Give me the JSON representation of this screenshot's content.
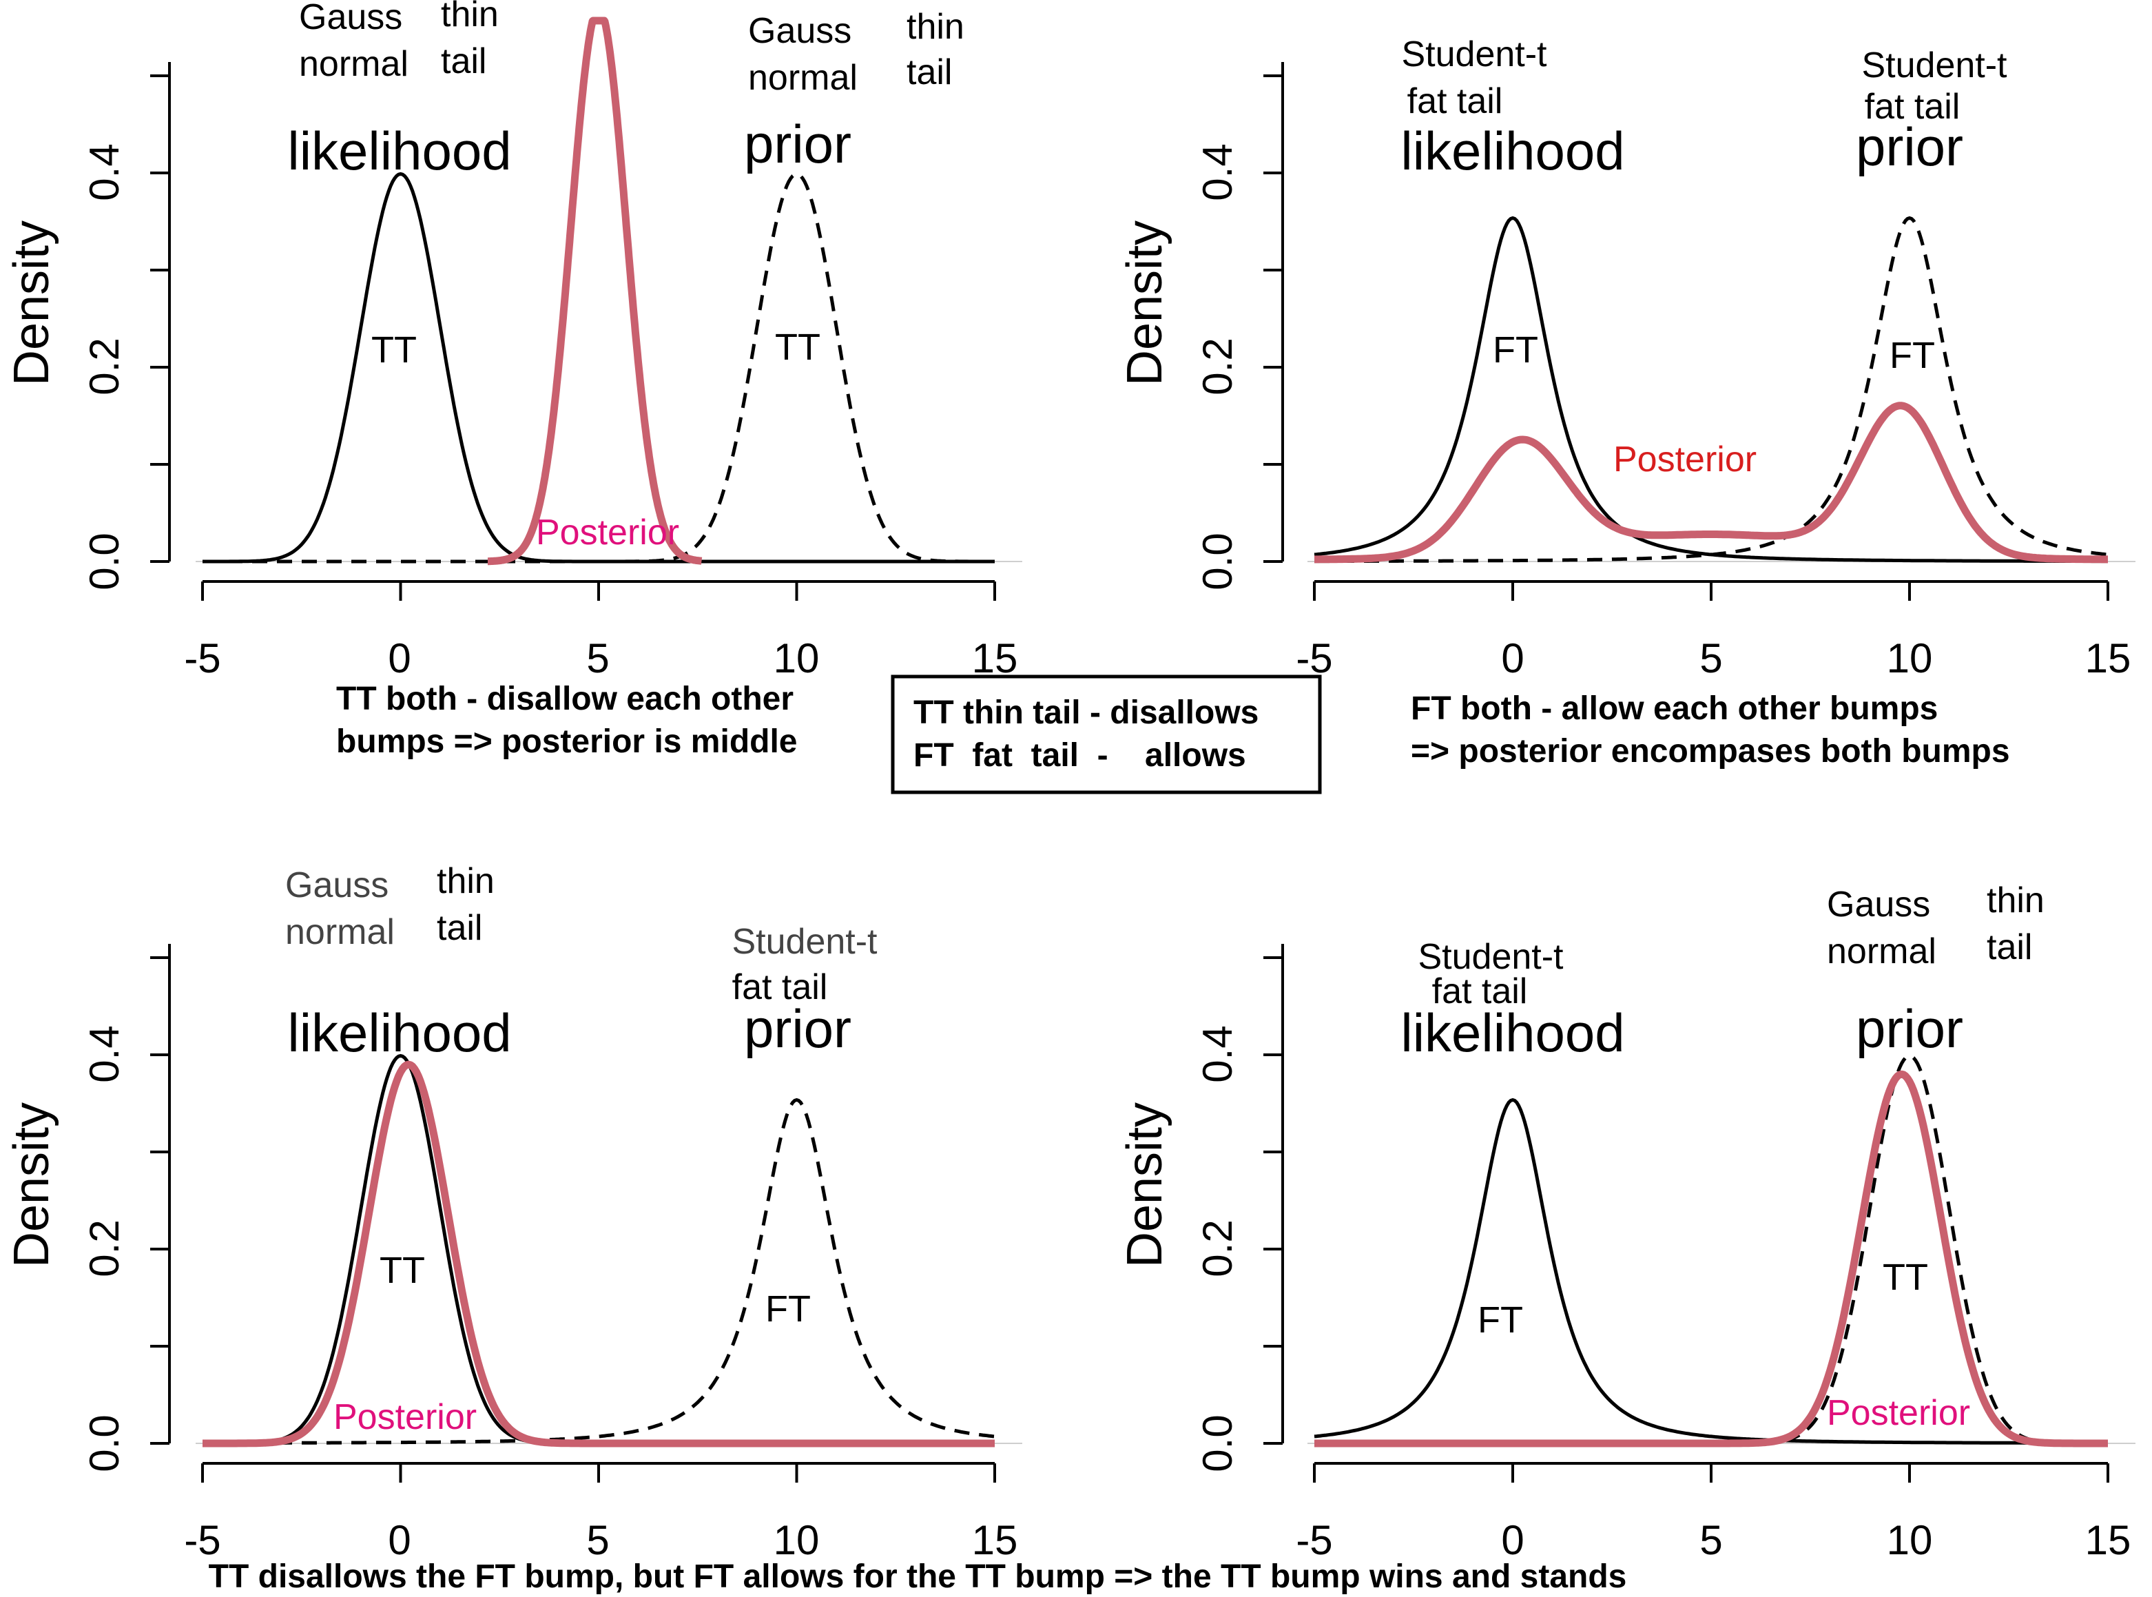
{
  "chart_data": [
    {
      "type": "line",
      "panel": "top-left",
      "ylabel": "Density",
      "xlim": [
        -5,
        15
      ],
      "ylim": [
        0,
        0.55
      ],
      "x_ticks": [
        "-5",
        "0",
        "5",
        "10",
        "15"
      ],
      "y_ticks": [
        "0.0",
        "0.2",
        "0.4"
      ],
      "series": [
        {
          "name": "likelihood",
          "dist": "normal",
          "loc": 0,
          "scale": 1,
          "style": "solid"
        },
        {
          "name": "prior",
          "dist": "normal",
          "loc": 10,
          "scale": 1,
          "style": "dashed"
        },
        {
          "name": "Posterior",
          "dist": "normal",
          "loc": 5,
          "scale": 0.7,
          "style": "posterior",
          "peak_clipped": true
        }
      ],
      "annotations": {
        "lik_a": "Gauss",
        "lik_b": "thin",
        "lik_c": "normal",
        "lik_d": "tail",
        "lik_title": "likelihood",
        "prior_a": "Gauss",
        "prior_b": "thin",
        "prior_c": "normal",
        "prior_d": "tail",
        "prior_title": "prior",
        "lik_tag": "TT",
        "prior_tag": "TT",
        "posterior_label": "Posterior"
      },
      "caption": [
        "TT both - disallow each other",
        "bumps => posterior is middle"
      ]
    },
    {
      "type": "line",
      "panel": "top-right",
      "ylabel": "Density",
      "xlim": [
        -5,
        15
      ],
      "ylim": [
        0,
        0.55
      ],
      "x_ticks": [
        "-5",
        "0",
        "5",
        "10",
        "15"
      ],
      "y_ticks": [
        "0.0",
        "0.2",
        "0.4"
      ],
      "series": [
        {
          "name": "likelihood",
          "dist": "t",
          "df": 2,
          "loc": 0,
          "style": "solid"
        },
        {
          "name": "prior",
          "dist": "t",
          "df": 2,
          "loc": 10,
          "style": "dashed"
        },
        {
          "name": "Posterior",
          "dist": "bimodal",
          "peaks": [
            [
              0.2,
              0.115
            ],
            [
              9.8,
              0.15
            ]
          ],
          "valley": 0.026,
          "style": "posterior"
        }
      ],
      "annotations": {
        "lik_a": "Student-t",
        "lik_b": "fat tail",
        "lik_title": "likelihood",
        "prior_a": "Student-t",
        "prior_b": "fat tail",
        "prior_title": "prior",
        "lik_tag": "FT",
        "prior_tag": "FT",
        "posterior_label": "Posterior"
      },
      "caption": [
        "FT both - allow each other bumps",
        "=> posterior encompases both bumps"
      ]
    },
    {
      "type": "line",
      "panel": "bottom-left",
      "ylabel": "Density",
      "xlim": [
        -5,
        15
      ],
      "ylim": [
        0,
        0.55
      ],
      "x_ticks": [
        "-5",
        "0",
        "5",
        "10",
        "15"
      ],
      "y_ticks": [
        "0.0",
        "0.2",
        "0.4"
      ],
      "series": [
        {
          "name": "likelihood",
          "dist": "normal",
          "loc": 0,
          "scale": 1,
          "style": "solid"
        },
        {
          "name": "prior",
          "dist": "t",
          "df": 2,
          "loc": 10,
          "style": "dashed"
        },
        {
          "name": "Posterior",
          "dist": "normal",
          "loc": 0.2,
          "scale": 1.0,
          "peak": 0.39,
          "style": "posterior"
        }
      ],
      "annotations": {
        "lik_a": "Gauss",
        "lik_b": "thin",
        "lik_c": "normal",
        "lik_d": "tail",
        "lik_title": "likelihood",
        "prior_a": "Student-t",
        "prior_b": "fat tail",
        "prior_title": "prior",
        "lik_tag": "TT",
        "prior_tag": "FT",
        "posterior_label": "Posterior"
      }
    },
    {
      "type": "line",
      "panel": "bottom-right",
      "ylabel": "Density",
      "xlim": [
        -5,
        15
      ],
      "ylim": [
        0,
        0.55
      ],
      "x_ticks": [
        "-5",
        "0",
        "5",
        "10",
        "15"
      ],
      "y_ticks": [
        "0.0",
        "0.2",
        "0.4"
      ],
      "series": [
        {
          "name": "likelihood",
          "dist": "t",
          "df": 2,
          "loc": 0,
          "style": "solid"
        },
        {
          "name": "prior",
          "dist": "normal",
          "loc": 10,
          "scale": 1,
          "style": "dashed"
        },
        {
          "name": "Posterior",
          "dist": "normal",
          "loc": 9.8,
          "scale": 1.0,
          "peak": 0.38,
          "style": "posterior"
        }
      ],
      "annotations": {
        "lik_a": "Student-t",
        "lik_b": "fat tail",
        "lik_title": "likelihood",
        "prior_a": "Gauss",
        "prior_b": "thin",
        "prior_c": "normal",
        "prior_d": "tail",
        "prior_title": "prior",
        "lik_tag": "FT",
        "prior_tag": "TT",
        "posterior_label": "Posterior"
      }
    }
  ],
  "center_box": [
    "TT thin tail - disallows",
    "FT  fat  tail  -    allows"
  ],
  "bottom_caption": "TT disallows the FT bump, but FT allows for the TT bump => the TT bump wins and stands",
  "colors": {
    "curve": "#000000",
    "posterior": "#c9606e",
    "posterior_label_magenta": "#e0107c",
    "posterior_label_red": "#d81e1e",
    "annotation_grey": "#444444",
    "background": "#ffffff"
  }
}
